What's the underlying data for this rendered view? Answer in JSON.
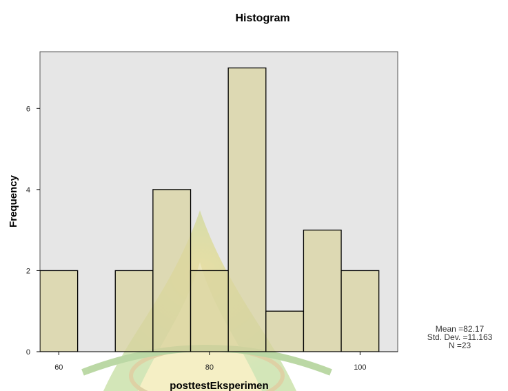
{
  "chart_data": {
    "type": "bar",
    "title": "Histogram",
    "xlabel": "posttestEksperimen",
    "ylabel": "Frequency",
    "bins": [
      {
        "start": 57.5,
        "end": 62.5,
        "count": 2
      },
      {
        "start": 62.5,
        "end": 67.5,
        "count": 0
      },
      {
        "start": 67.5,
        "end": 72.5,
        "count": 2
      },
      {
        "start": 72.5,
        "end": 77.5,
        "count": 4
      },
      {
        "start": 77.5,
        "end": 82.5,
        "count": 2
      },
      {
        "start": 82.5,
        "end": 87.5,
        "count": 7
      },
      {
        "start": 87.5,
        "end": 92.5,
        "count": 1
      },
      {
        "start": 92.5,
        "end": 97.5,
        "count": 3
      },
      {
        "start": 97.5,
        "end": 102.5,
        "count": 2
      }
    ],
    "xlim": [
      57.5,
      105
    ],
    "ylim": [
      0,
      7.4
    ],
    "xticks": [
      60,
      80,
      100
    ],
    "yticks": [
      0,
      2,
      4,
      6
    ],
    "grid": false,
    "bar_color": "#d9d4a0",
    "plot_background": "#e6e6e6"
  },
  "stats": {
    "mean": "Mean =82.17",
    "std_dev": "Std. Dev. =11.163",
    "n": "N =23"
  }
}
